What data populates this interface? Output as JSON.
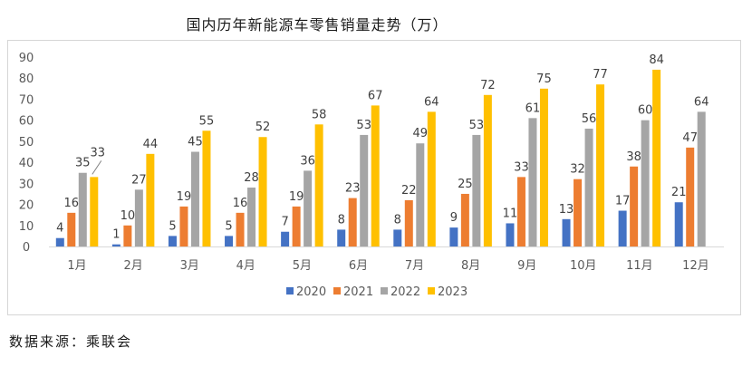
{
  "source_note": "数据来源：乘联会",
  "chart_data": {
    "type": "bar",
    "title": "国内历年新能源车零售销量走势（万）",
    "xlabel": "",
    "ylabel": "",
    "ylim": [
      0,
      90
    ],
    "yticks": [
      "0",
      "10",
      "20",
      "30",
      "40",
      "50",
      "60",
      "70",
      "80",
      "90"
    ],
    "categories": [
      "1月",
      "2月",
      "3月",
      "4月",
      "5月",
      "6月",
      "7月",
      "8月",
      "9月",
      "10月",
      "11月",
      "12月"
    ],
    "legend_position": "bottom",
    "series": [
      {
        "name": "2020",
        "color": "#4472c4",
        "values": [
          4,
          1,
          5,
          5,
          7,
          8,
          8,
          9,
          11,
          13,
          17,
          21
        ]
      },
      {
        "name": "2021",
        "color": "#ed7d31",
        "values": [
          16,
          10,
          19,
          16,
          19,
          23,
          22,
          25,
          33,
          32,
          38,
          47
        ]
      },
      {
        "name": "2022",
        "color": "#a5a5a5",
        "values": [
          35,
          27,
          45,
          28,
          36,
          53,
          49,
          53,
          61,
          56,
          60,
          64
        ]
      },
      {
        "name": "2023",
        "color": "#ffc000",
        "values": [
          33,
          44,
          55,
          52,
          58,
          67,
          64,
          72,
          75,
          77,
          84,
          null
        ]
      }
    ]
  }
}
